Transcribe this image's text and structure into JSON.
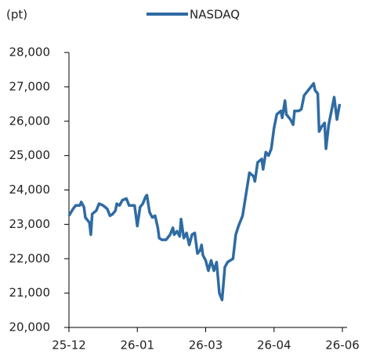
{
  "chart_data": {
    "type": "line",
    "unit_label": "(pt)",
    "legend": "top",
    "series": [
      {
        "name": "NASDAQ",
        "color": "#2f6ba3",
        "x": [
          0,
          1.5,
          2.5,
          4,
          4.5,
          5.5,
          6,
          7.5,
          8,
          8.5,
          10,
          11,
          12.5,
          14,
          15,
          16,
          17,
          17.5,
          18.5,
          19.5,
          21,
          22,
          24,
          25,
          26,
          27,
          28,
          28.5,
          29.5,
          30.5,
          31.5,
          32.5,
          33,
          34,
          35.5,
          37,
          38,
          38.5,
          39.5,
          40.5,
          41,
          42,
          43,
          44,
          45,
          46,
          47,
          48,
          48.5,
          49,
          50,
          51,
          52,
          53,
          54,
          55,
          56,
          57,
          58,
          60,
          61,
          62,
          63.5,
          65,
          66,
          67.5,
          68,
          69,
          70.5,
          71,
          72,
          73,
          74,
          75,
          76,
          77.5,
          78,
          79,
          79.5,
          81,
          82,
          82.5,
          84,
          85,
          86,
          87,
          88.5,
          89.5,
          90,
          91,
          91.5,
          92.5,
          93.5,
          94,
          95,
          96,
          97,
          98,
          99
        ],
        "values": [
          23250,
          23450,
          23550,
          23550,
          23650,
          23500,
          23200,
          23050,
          22700,
          23300,
          23400,
          23600,
          23550,
          23450,
          23250,
          23300,
          23400,
          23600,
          23550,
          23700,
          23750,
          23550,
          23550,
          22950,
          23500,
          23600,
          23800,
          23850,
          23350,
          23200,
          23250,
          22900,
          22600,
          22550,
          22550,
          22700,
          22900,
          22700,
          22800,
          22650,
          23150,
          22600,
          22750,
          22400,
          22700,
          22750,
          22150,
          22250,
          22400,
          22100,
          21950,
          21650,
          21950,
          21650,
          21900,
          21000,
          20800,
          21750,
          21900,
          22000,
          22700,
          22950,
          23250,
          24000,
          24500,
          24400,
          24250,
          24800,
          24900,
          24600,
          25100,
          25000,
          25200,
          25800,
          26200,
          26300,
          26100,
          26600,
          26200,
          26050,
          25900,
          26300,
          26300,
          26350,
          26750,
          26850,
          27000,
          27100,
          26900,
          26800,
          25700,
          25850,
          25950,
          25200,
          25900,
          26300,
          26700,
          26050,
          26500
        ]
      }
    ],
    "xlim": [
      0,
      100
    ],
    "xticks": [
      {
        "value": 0,
        "label": "25-12"
      },
      {
        "value": 25,
        "label": "26-01"
      },
      {
        "value": 50,
        "label": "26-03"
      },
      {
        "value": 75,
        "label": "26-04"
      },
      {
        "value": 100,
        "label": "26-06"
      }
    ],
    "ylim": [
      20000,
      28000
    ],
    "yticks": [
      {
        "value": 20000,
        "label": "20,000"
      },
      {
        "value": 21000,
        "label": "21,000"
      },
      {
        "value": 22000,
        "label": "22,000"
      },
      {
        "value": 23000,
        "label": "23,000"
      },
      {
        "value": 24000,
        "label": "24,000"
      },
      {
        "value": 25000,
        "label": "25,000"
      },
      {
        "value": 26000,
        "label": "26,000"
      },
      {
        "value": 27000,
        "label": "27,000"
      },
      {
        "value": 28000,
        "label": "28,000"
      }
    ],
    "grid": false
  }
}
